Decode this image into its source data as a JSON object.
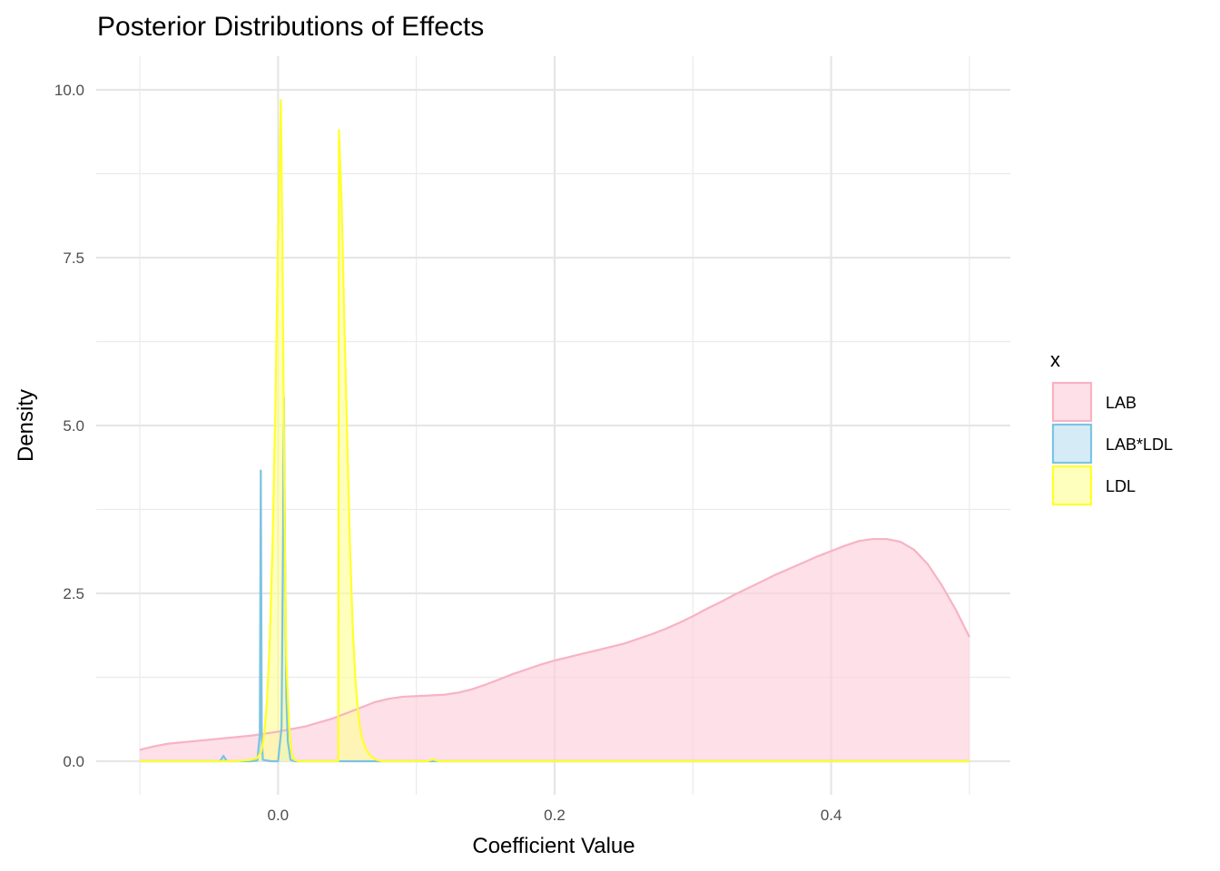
{
  "chart_data": {
    "type": "area",
    "title": "Posterior Distributions of Effects",
    "xlabel": "Coefficient Value",
    "ylabel": "Density",
    "xlim": [
      -0.1,
      0.5
    ],
    "ylim": [
      0,
      10
    ],
    "x_ticks": [
      0.0,
      0.2,
      0.4
    ],
    "x_tick_labels": [
      "0.0",
      "0.2",
      "0.4"
    ],
    "x_minor_ticks": [
      -0.1,
      0.1,
      0.3,
      0.5
    ],
    "y_ticks": [
      0,
      2.5,
      5,
      7.5,
      10
    ],
    "y_tick_labels": [
      "0.0",
      "2.5",
      "5.0",
      "7.5",
      "10.0"
    ],
    "y_minor_ticks": [
      1.25,
      3.75,
      6.25,
      8.75
    ],
    "grid": true,
    "legend": {
      "title": "x",
      "position": "right"
    },
    "series": [
      {
        "name": "LAB",
        "stroke": "#f7b3c4",
        "fill": "#fcd0dc",
        "points": [
          [
            -0.1,
            0.17
          ],
          [
            -0.09,
            0.22
          ],
          [
            -0.08,
            0.26
          ],
          [
            -0.07,
            0.28
          ],
          [
            -0.06,
            0.3
          ],
          [
            -0.05,
            0.32
          ],
          [
            -0.04,
            0.34
          ],
          [
            -0.03,
            0.36
          ],
          [
            -0.02,
            0.38
          ],
          [
            -0.01,
            0.41
          ],
          [
            0.0,
            0.44
          ],
          [
            0.01,
            0.48
          ],
          [
            0.02,
            0.52
          ],
          [
            0.03,
            0.58
          ],
          [
            0.04,
            0.64
          ],
          [
            0.05,
            0.72
          ],
          [
            0.06,
            0.8
          ],
          [
            0.07,
            0.88
          ],
          [
            0.08,
            0.93
          ],
          [
            0.09,
            0.96
          ],
          [
            0.1,
            0.97
          ],
          [
            0.11,
            0.98
          ],
          [
            0.12,
            0.99
          ],
          [
            0.13,
            1.02
          ],
          [
            0.14,
            1.07
          ],
          [
            0.15,
            1.14
          ],
          [
            0.16,
            1.22
          ],
          [
            0.17,
            1.3
          ],
          [
            0.18,
            1.37
          ],
          [
            0.19,
            1.44
          ],
          [
            0.2,
            1.5
          ],
          [
            0.21,
            1.55
          ],
          [
            0.22,
            1.6
          ],
          [
            0.23,
            1.65
          ],
          [
            0.24,
            1.7
          ],
          [
            0.25,
            1.75
          ],
          [
            0.26,
            1.82
          ],
          [
            0.27,
            1.89
          ],
          [
            0.28,
            1.97
          ],
          [
            0.29,
            2.06
          ],
          [
            0.3,
            2.16
          ],
          [
            0.31,
            2.27
          ],
          [
            0.32,
            2.37
          ],
          [
            0.33,
            2.48
          ],
          [
            0.34,
            2.58
          ],
          [
            0.35,
            2.68
          ],
          [
            0.36,
            2.78
          ],
          [
            0.37,
            2.87
          ],
          [
            0.38,
            2.96
          ],
          [
            0.39,
            3.05
          ],
          [
            0.4,
            3.13
          ],
          [
            0.41,
            3.21
          ],
          [
            0.42,
            3.28
          ],
          [
            0.43,
            3.31
          ],
          [
            0.44,
            3.31
          ],
          [
            0.45,
            3.27
          ],
          [
            0.46,
            3.15
          ],
          [
            0.47,
            2.93
          ],
          [
            0.48,
            2.62
          ],
          [
            0.49,
            2.26
          ],
          [
            0.5,
            1.85
          ]
        ]
      },
      {
        "name": "LAB*LDL",
        "stroke": "#7cc3e4",
        "fill": "#bfe2f3",
        "points": [
          [
            -0.1,
            0.0
          ],
          [
            -0.042,
            0.0
          ],
          [
            -0.0395,
            0.08
          ],
          [
            -0.037,
            0.0
          ],
          [
            -0.02,
            0.0
          ],
          [
            -0.015,
            0.01
          ],
          [
            -0.0132,
            0.4
          ],
          [
            -0.0125,
            4.33
          ],
          [
            -0.0118,
            0.4
          ],
          [
            -0.011,
            0.02
          ],
          [
            -0.005,
            0.0
          ],
          [
            0.0,
            0.0
          ],
          [
            0.0025,
            0.5
          ],
          [
            0.0035,
            3.0
          ],
          [
            0.0042,
            5.42
          ],
          [
            0.005,
            3.2
          ],
          [
            0.006,
            1.0
          ],
          [
            0.007,
            0.3
          ],
          [
            0.009,
            0.02
          ],
          [
            0.012,
            0.0
          ],
          [
            0.5,
            0.0
          ]
        ]
      },
      {
        "name": "LDL",
        "stroke": "#ffff2a",
        "fill": "#ffff99",
        "points": [
          [
            -0.1,
            0.0
          ],
          [
            -0.03,
            0.0
          ],
          [
            -0.02,
            0.02
          ],
          [
            -0.015,
            0.05
          ],
          [
            -0.012,
            0.15
          ],
          [
            -0.01,
            0.4
          ],
          [
            -0.008,
            0.9
          ],
          [
            -0.006,
            1.8
          ],
          [
            -0.004,
            3.2
          ],
          [
            -0.002,
            5.2
          ],
          [
            -0.001,
            6.5
          ],
          [
            0.0,
            7.8
          ],
          [
            0.001,
            8.8
          ],
          [
            0.002,
            9.85
          ],
          [
            0.003,
            8.0
          ],
          [
            0.004,
            5.5
          ],
          [
            0.005,
            3.0
          ],
          [
            0.006,
            1.5
          ],
          [
            0.008,
            0.5
          ],
          [
            0.01,
            0.1
          ],
          [
            0.012,
            0.02
          ],
          [
            0.015,
            0.0
          ],
          [
            0.0435,
            0.0
          ],
          [
            0.044,
            9.4
          ],
          [
            0.046,
            8.3
          ],
          [
            0.048,
            6.5
          ],
          [
            0.05,
            4.8
          ],
          [
            0.052,
            3.2
          ],
          [
            0.054,
            2.0
          ],
          [
            0.056,
            1.2
          ],
          [
            0.058,
            0.7
          ],
          [
            0.06,
            0.4
          ],
          [
            0.063,
            0.2
          ],
          [
            0.066,
            0.1
          ],
          [
            0.07,
            0.03
          ],
          [
            0.075,
            0.0
          ],
          [
            0.108,
            0.0
          ],
          [
            0.112,
            0.03
          ],
          [
            0.116,
            0.0
          ],
          [
            0.5,
            0.0
          ]
        ]
      }
    ]
  }
}
